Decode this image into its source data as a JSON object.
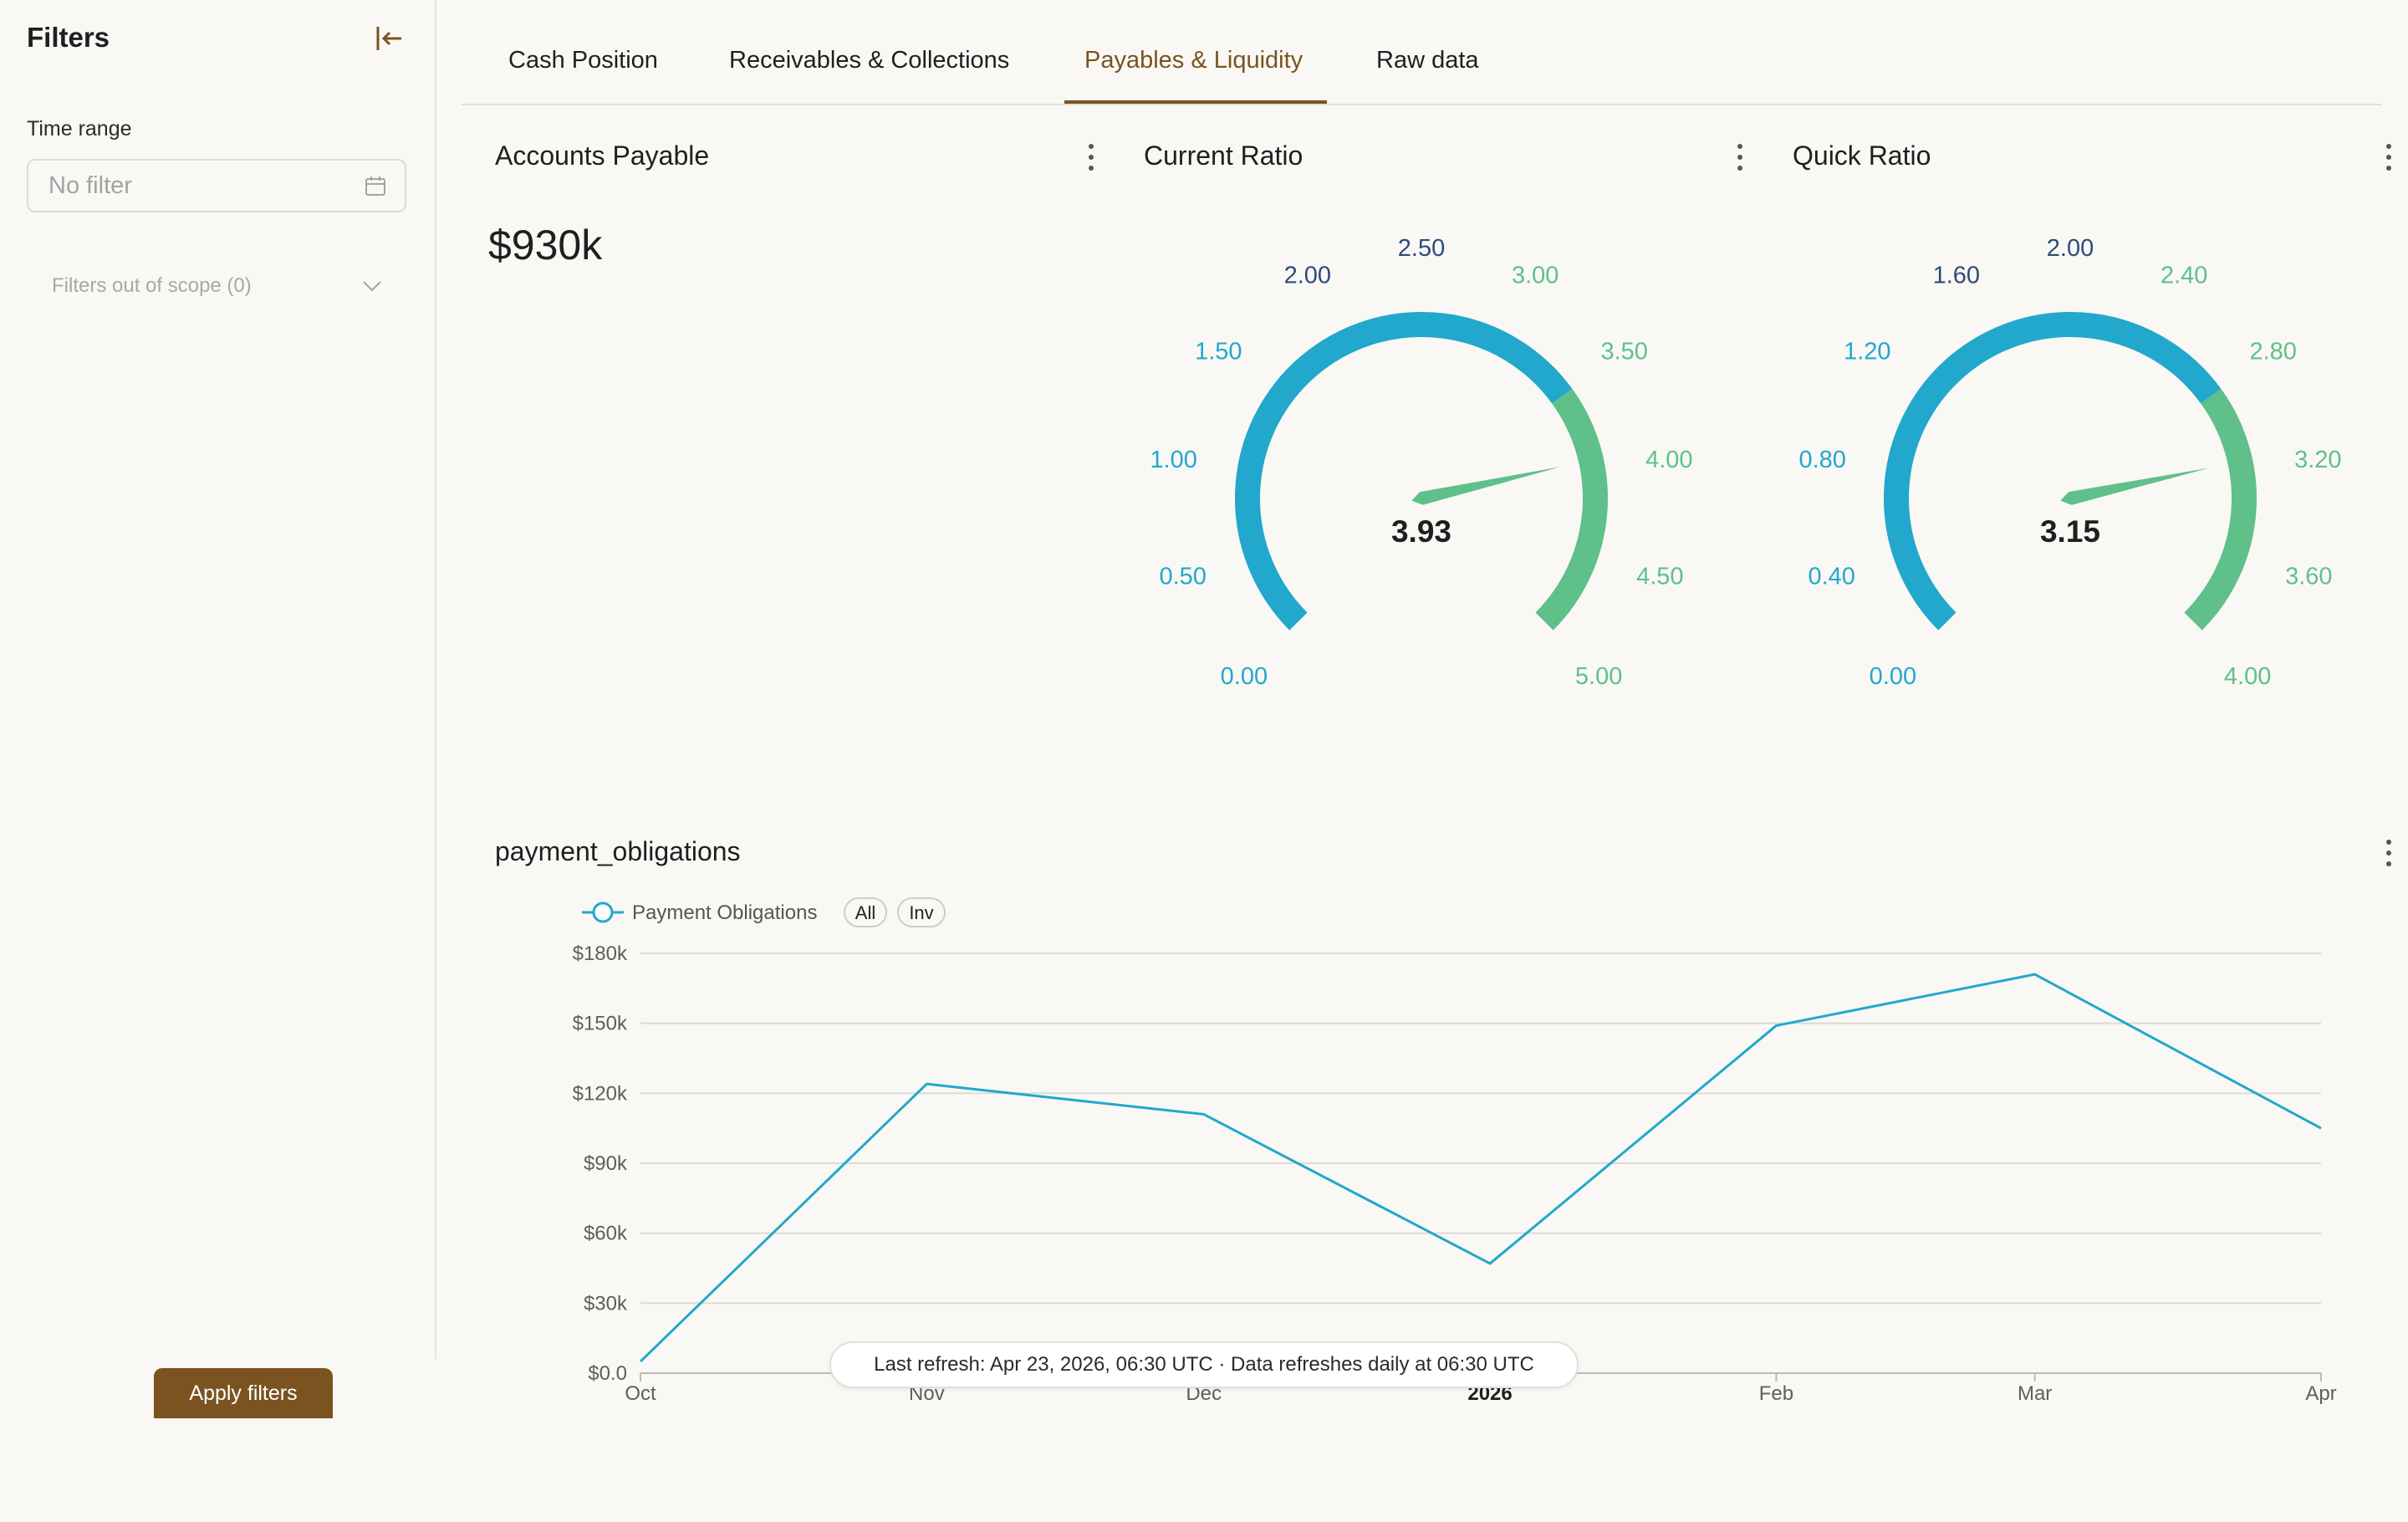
{
  "sidebar": {
    "title": "Filters",
    "time_range_label": "Time range",
    "time_range_placeholder": "No filter",
    "scope_label": "Filters out of scope (0)",
    "apply_label": "Apply filters"
  },
  "tabs": [
    {
      "label": "Cash Position",
      "active": false
    },
    {
      "label": "Receivables & Collections",
      "active": false
    },
    {
      "label": "Payables & Liquidity",
      "active": true
    },
    {
      "label": "Raw data",
      "active": false
    }
  ],
  "accounts_payable": {
    "title": "Accounts Payable",
    "value": "$930k"
  },
  "current_ratio": {
    "title": "Current Ratio",
    "value": 3.93,
    "value_label": "3.93",
    "min": 0,
    "max": 5,
    "ticks": [
      "0.00",
      "0.50",
      "1.00",
      "1.50",
      "2.00",
      "2.50",
      "3.00",
      "3.50",
      "4.00",
      "4.50",
      "5.00"
    ],
    "green_from": 3.5
  },
  "quick_ratio": {
    "title": "Quick Ratio",
    "value": 3.15,
    "value_label": "3.15",
    "min": 0,
    "max": 4,
    "ticks": [
      "0.00",
      "0.40",
      "0.80",
      "1.20",
      "1.60",
      "2.00",
      "2.40",
      "2.80",
      "3.20",
      "3.60",
      "4.00"
    ],
    "green_from": 2.8
  },
  "colors": {
    "blue": "#21a8cc",
    "green": "#5fc089",
    "navy": "#2e4a78",
    "accent": "#7a5320"
  },
  "line_chart": {
    "title": "payment_obligations",
    "legend_series": "Payment Obligations",
    "legend_pills": [
      "All",
      "Inv"
    ],
    "refresh_note": "Last refresh: Apr 23, 2026, 06:30 UTC · Data refreshes daily at 06:30 UTC"
  },
  "chart_data": {
    "type": "line",
    "x": [
      "2025-10-01",
      "2025-11-01",
      "2025-12-01",
      "2026-01-01",
      "2026-02-01",
      "2026-03-01",
      "2026-04-01"
    ],
    "x_tick_labels": [
      "Oct",
      "Nov",
      "Dec",
      "2026",
      "Feb",
      "Mar",
      "Apr"
    ],
    "series": [
      {
        "name": "Payment Obligations",
        "values": [
          5000,
          124000,
          111000,
          47000,
          149000,
          171000,
          105000
        ]
      }
    ],
    "y_tick_labels": [
      "$0.0",
      "$30k",
      "$60k",
      "$90k",
      "$120k",
      "$150k",
      "$180k"
    ],
    "ylim": [
      0,
      180000
    ],
    "grid": true,
    "legend": "top-left"
  }
}
